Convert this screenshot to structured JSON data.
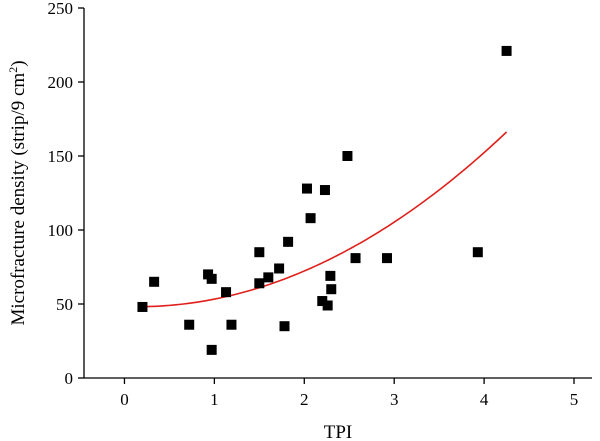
{
  "chart_data": {
    "type": "scatter",
    "xlabel": "TPI",
    "ylabel_main": "Microfracture density (strip/9 cm",
    "ylabel_sup": "2",
    "ylabel_close": ")",
    "xlim": [
      -0.45,
      5.2
    ],
    "ylim": [
      0,
      250
    ],
    "xticks": [
      0,
      1,
      2,
      3,
      4,
      5
    ],
    "yticks": [
      0,
      50,
      100,
      150,
      200,
      250
    ],
    "grid": false,
    "legend": "none",
    "marker_color": "#000000",
    "fit_color": "#e0201b",
    "points": [
      {
        "x": 0.2,
        "y": 48
      },
      {
        "x": 0.33,
        "y": 65
      },
      {
        "x": 0.72,
        "y": 36
      },
      {
        "x": 0.93,
        "y": 70
      },
      {
        "x": 0.97,
        "y": 67
      },
      {
        "x": 0.97,
        "y": 19
      },
      {
        "x": 1.13,
        "y": 58
      },
      {
        "x": 1.19,
        "y": 36
      },
      {
        "x": 1.5,
        "y": 85
      },
      {
        "x": 1.5,
        "y": 64
      },
      {
        "x": 1.6,
        "y": 68
      },
      {
        "x": 1.72,
        "y": 74
      },
      {
        "x": 1.78,
        "y": 35
      },
      {
        "x": 1.82,
        "y": 92
      },
      {
        "x": 2.03,
        "y": 128
      },
      {
        "x": 2.07,
        "y": 108
      },
      {
        "x": 2.2,
        "y": 52
      },
      {
        "x": 2.23,
        "y": 127
      },
      {
        "x": 2.26,
        "y": 49
      },
      {
        "x": 2.29,
        "y": 69
      },
      {
        "x": 2.3,
        "y": 60
      },
      {
        "x": 2.48,
        "y": 150
      },
      {
        "x": 2.57,
        "y": 81
      },
      {
        "x": 2.92,
        "y": 81
      },
      {
        "x": 3.93,
        "y": 85
      },
      {
        "x": 4.25,
        "y": 221
      }
    ],
    "fit": {
      "type": "quadratic",
      "coefficients": [
        48.3,
        -2.0,
        7.0
      ],
      "x_range": [
        0.2,
        4.25
      ]
    }
  }
}
